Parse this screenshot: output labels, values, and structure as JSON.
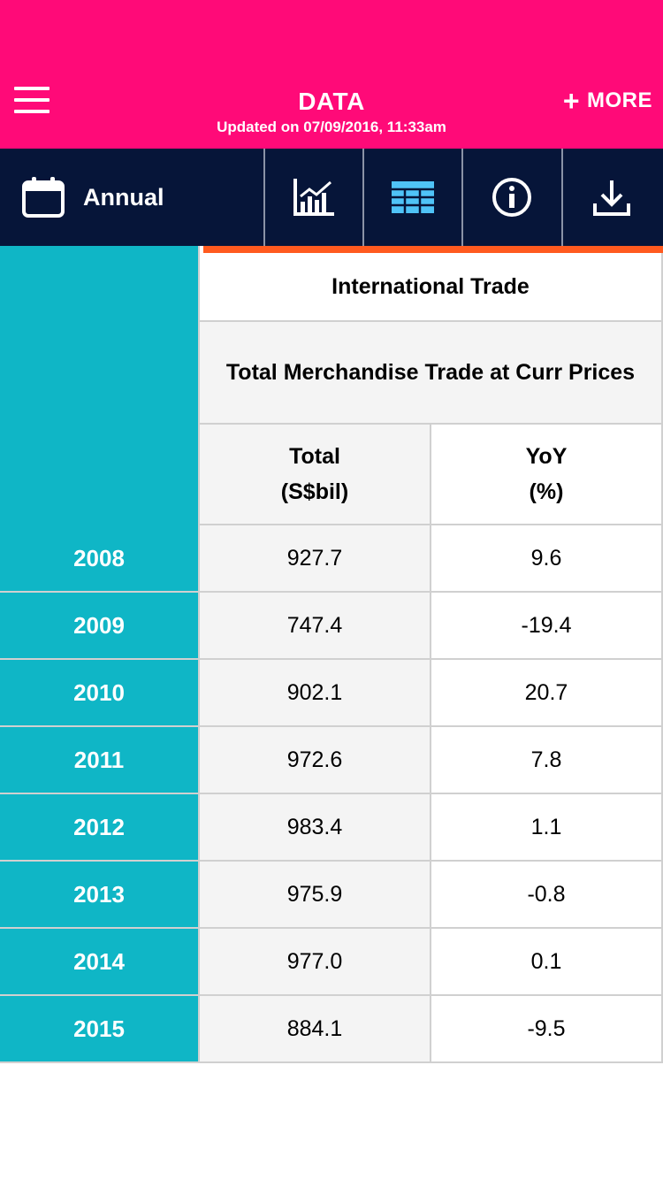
{
  "header": {
    "title": "DATA",
    "updated": "Updated on 07/09/2016, 11:33am",
    "more_label": "MORE",
    "more_icon": "plus-icon",
    "menu_icon": "hamburger-menu-icon",
    "bg_color": "#ff0a78"
  },
  "toolbar": {
    "frequency_label": "Annual",
    "frequency_icon": "calendar-icon",
    "tools": [
      "chart-icon",
      "table-icon",
      "info-icon",
      "download-icon"
    ],
    "bg_color": "#061539",
    "active_tool_color": "#4fc3f7"
  },
  "table": {
    "group_header": "International Trade",
    "sub_header": "Total Merchandise Trade at Curr Prices",
    "col1_line1": "Total",
    "col1_line2": "(S$bil)",
    "col2_line1": "YoY",
    "col2_line2": "(%)",
    "rows": [
      {
        "year": "2008",
        "total": "927.7",
        "yoy": "9.6"
      },
      {
        "year": "2009",
        "total": "747.4",
        "yoy": "-19.4"
      },
      {
        "year": "2010",
        "total": "902.1",
        "yoy": "20.7"
      },
      {
        "year": "2011",
        "total": "972.6",
        "yoy": "7.8"
      },
      {
        "year": "2012",
        "total": "983.4",
        "yoy": "1.1"
      },
      {
        "year": "2013",
        "total": "975.9",
        "yoy": "-0.8"
      },
      {
        "year": "2014",
        "total": "977.0",
        "yoy": "0.1"
      },
      {
        "year": "2015",
        "total": "884.1",
        "yoy": "-9.5"
      }
    ],
    "year_col_color": "#0fb6c6",
    "accent_color": "#ff5a1f"
  }
}
